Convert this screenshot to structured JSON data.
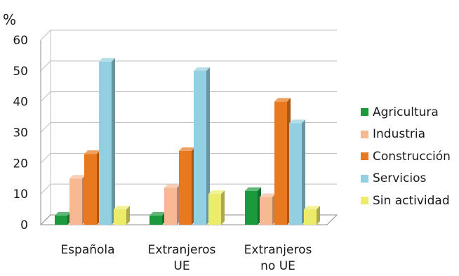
{
  "chart_data": {
    "type": "bar",
    "title": "",
    "ylabel": "%",
    "xlabel": "",
    "ylim": [
      0,
      60
    ],
    "yticks": [
      "0",
      "10",
      "20",
      "30",
      "40",
      "50",
      "60"
    ],
    "categories": [
      [
        "Española"
      ],
      [
        "Extranjeros",
        "UE"
      ],
      [
        "Extranjeros",
        "no UE"
      ]
    ],
    "series": [
      {
        "name": "Agricultura",
        "color": "#1a9a3c",
        "values": [
          3,
          3,
          11
        ]
      },
      {
        "name": "Industria",
        "color": "#f7b994",
        "values": [
          15,
          12,
          9
        ]
      },
      {
        "name": "Construcción",
        "color": "#e8791f",
        "values": [
          23,
          24,
          40
        ]
      },
      {
        "name": "Servicios",
        "color": "#92cfe0",
        "values": [
          53,
          50,
          33
        ]
      },
      {
        "name": "Sin actividad",
        "color": "#ecec6a",
        "values": [
          5,
          10,
          5
        ]
      }
    ],
    "grid": true,
    "legend": "right",
    "style": "3d"
  }
}
